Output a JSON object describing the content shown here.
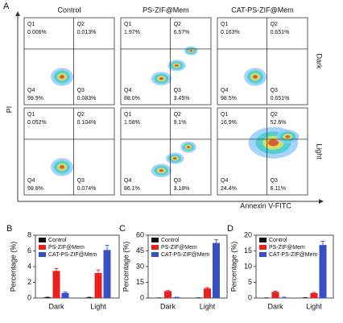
{
  "flow_cytometry": {
    "label": "A",
    "x_label": "Annexin V-FITC",
    "y_label": "PI",
    "columns": [
      "Control",
      "PS-ZIF@Mem",
      "CAT-PS-ZIF@Mem"
    ],
    "rows": [
      "Dark",
      "Light"
    ],
    "quadrant_names": [
      "Q1",
      "Q2",
      "Q3",
      "Q4"
    ],
    "plots": [
      [
        {
          "q1": "0.006%",
          "q2": "0.013%",
          "q3": "0.083%",
          "q4": "99.9%"
        },
        {
          "q1": "1.97%",
          "q2": "6.57%",
          "q3": "3.45%",
          "q4": "88.0%"
        },
        {
          "q1": "0.163%",
          "q2": "0.651%",
          "q3": "0.651%",
          "q4": "98.5%"
        }
      ],
      [
        {
          "q1": "0.052%",
          "q2": "0.104%",
          "q3": "0.074%",
          "q4": "99.8%"
        },
        {
          "q1": "1.58%",
          "q2": "9.1%",
          "q3": "3.18%",
          "q4": "86.1%"
        },
        {
          "q1": "16.9%",
          "q2": "52.6%",
          "q3": "6.11%",
          "q4": "24.4%"
        }
      ]
    ]
  },
  "chart_data": [
    {
      "type": "bar",
      "label": "B",
      "y_label": "Percentage (%)",
      "categories": [
        "Dark",
        "Light"
      ],
      "ylim": [
        0,
        8
      ],
      "yticks": [
        0,
        2,
        4,
        6,
        8
      ],
      "series": [
        {
          "name": "Control",
          "color": "#111111",
          "values": [
            0.083,
            0.074
          ],
          "errors": [
            0.02,
            0.02
          ]
        },
        {
          "name": "PS-ZIF@Mem",
          "color": "#e8201e",
          "values": [
            3.45,
            3.18
          ],
          "errors": [
            0.3,
            0.4
          ]
        },
        {
          "name": "CAT-PS-ZIF@Mem",
          "color": "#3a4fc4",
          "values": [
            0.651,
            6.11
          ],
          "errors": [
            0.1,
            0.6
          ]
        }
      ]
    },
    {
      "type": "bar",
      "label": "C",
      "y_label": "Percentage (%)",
      "categories": [
        "Dark",
        "Light"
      ],
      "ylim": [
        0,
        60
      ],
      "yticks": [
        0,
        15,
        30,
        45,
        60
      ],
      "series": [
        {
          "name": "Control",
          "color": "#111111",
          "values": [
            0.013,
            0.104
          ],
          "errors": [
            0.1,
            0.1
          ]
        },
        {
          "name": "PS-ZIF@Mem",
          "color": "#e8201e",
          "values": [
            6.57,
            9.1
          ],
          "errors": [
            0.6,
            0.8
          ]
        },
        {
          "name": "CAT-PS-ZIF@Mem",
          "color": "#3a4fc4",
          "values": [
            0.651,
            52.6
          ],
          "errors": [
            0.2,
            3
          ]
        }
      ]
    },
    {
      "type": "bar",
      "label": "D",
      "y_label": "Percentage (%)",
      "categories": [
        "Dark",
        "Light"
      ],
      "ylim": [
        0,
        20
      ],
      "yticks": [
        0,
        5,
        10,
        15,
        20
      ],
      "series": [
        {
          "name": "Control",
          "color": "#111111",
          "values": [
            0.006,
            0.052
          ],
          "errors": [
            0.05,
            0.05
          ]
        },
        {
          "name": "PS-ZIF@Mem",
          "color": "#e8201e",
          "values": [
            1.97,
            1.58
          ],
          "errors": [
            0.2,
            0.2
          ]
        },
        {
          "name": "CAT-PS-ZIF@Mem",
          "color": "#3a4fc4",
          "values": [
            0.163,
            16.9
          ],
          "errors": [
            0.1,
            1.2
          ]
        }
      ]
    }
  ]
}
